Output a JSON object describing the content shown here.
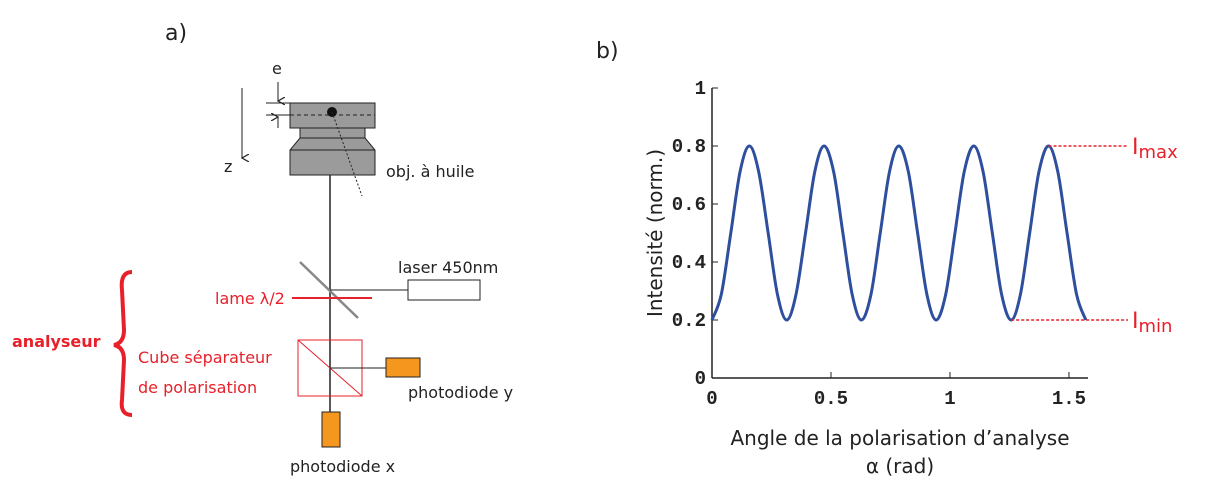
{
  "diagram": {
    "panel_label": "a)",
    "labels": {
      "e": "e",
      "z": "z",
      "objective": "obj. à huile",
      "laser": "laser 450nm",
      "plate": "lame λ/2",
      "analyser": "analyseur",
      "cube_1": "Cube séparateur",
      "cube_2": "de polarisation",
      "photodiode_y": "photodiode y",
      "photodiode_x": "photodiode x"
    }
  },
  "chart_data": {
    "type": "line",
    "panel_label": "b)",
    "xlabel": [
      "Angle de la polarisation d’analyse",
      "α (rad)"
    ],
    "ylabel": "Intensité (norm.)",
    "x": [
      0,
      0.039,
      0.079,
      0.118,
      0.157,
      0.196,
      0.236,
      0.275,
      0.314,
      0.353,
      0.393,
      0.432,
      0.471,
      0.511,
      0.55,
      0.589,
      0.628,
      0.668,
      0.707,
      0.746,
      0.785,
      0.825,
      0.864,
      0.903,
      0.942,
      0.982,
      1.021,
      1.06,
      1.1,
      1.139,
      1.178,
      1.217,
      1.257,
      1.296,
      1.335,
      1.374,
      1.414,
      1.453,
      1.492,
      1.532,
      1.571
    ],
    "series": [
      {
        "color": "#2e4e9e",
        "values": [
          0.2,
          0.288,
          0.5,
          0.712,
          0.8,
          0.712,
          0.5,
          0.288,
          0.2,
          0.288,
          0.5,
          0.712,
          0.8,
          0.712,
          0.5,
          0.288,
          0.2,
          0.288,
          0.5,
          0.712,
          0.8,
          0.712,
          0.5,
          0.288,
          0.2,
          0.288,
          0.5,
          0.712,
          0.8,
          0.712,
          0.5,
          0.288,
          0.2,
          0.288,
          0.5,
          0.712,
          0.8,
          0.712,
          0.5,
          0.288,
          0.2
        ]
      }
    ],
    "xlim": [
      0,
      1.58
    ],
    "ylim": [
      0,
      1
    ],
    "xticks": [
      0,
      0.5,
      1,
      1.5
    ],
    "yticks": [
      0,
      0.2,
      0.4,
      0.6,
      0.8,
      1
    ],
    "annotations": [
      {
        "text": "I",
        "subscript": "max",
        "color": "#e8202a"
      },
      {
        "text": "I",
        "subscript": "min",
        "color": "#e8202a"
      }
    ]
  }
}
